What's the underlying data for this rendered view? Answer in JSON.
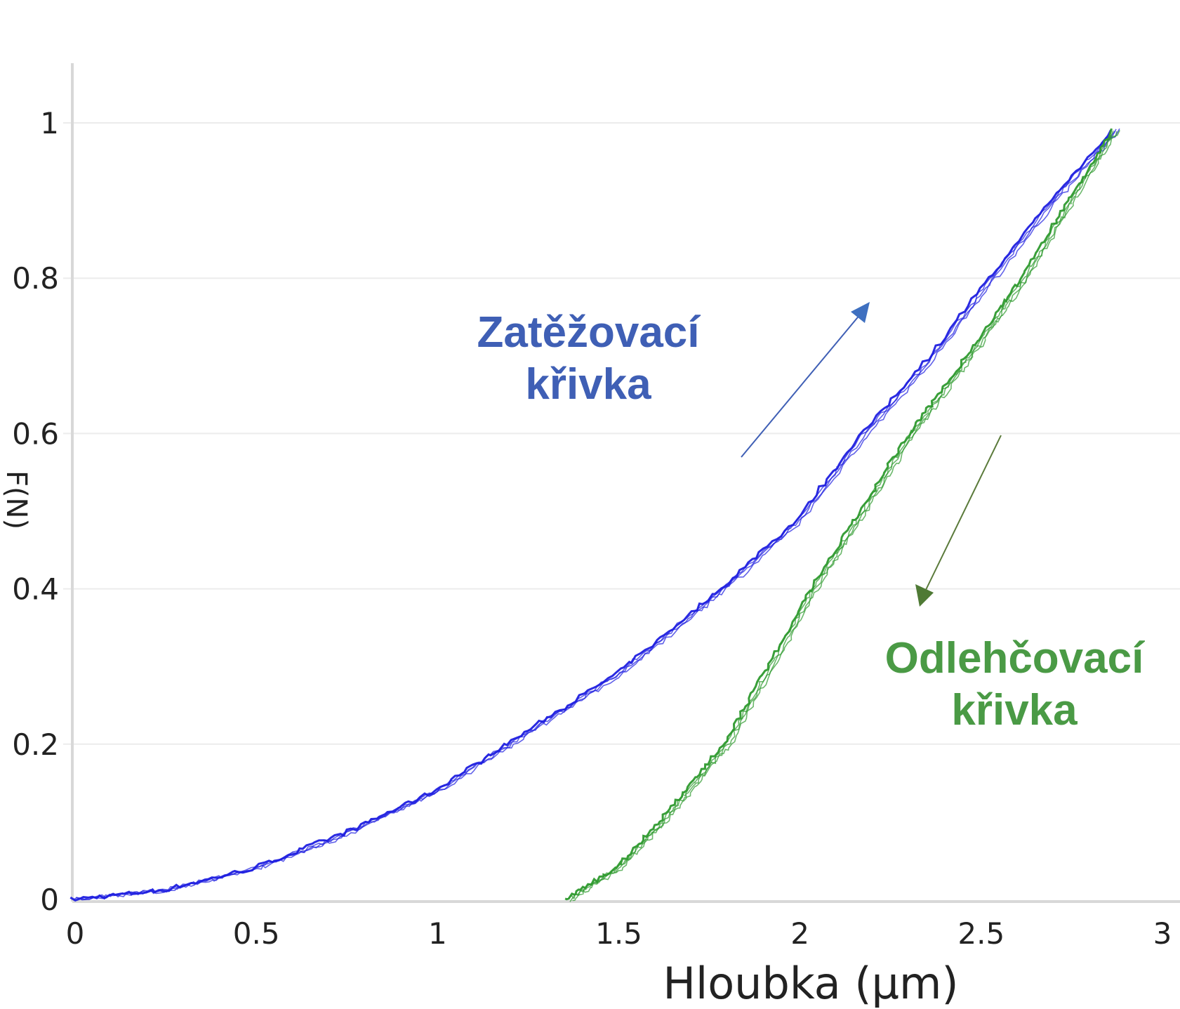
{
  "chart_data": {
    "type": "line",
    "xlabel": "Hloubka  (µm)",
    "ylabel": "F(N)",
    "xlim": [
      0,
      3
    ],
    "ylim": [
      0,
      1
    ],
    "x_ticks": [
      "0",
      "0.5",
      "1",
      "1.5",
      "2",
      "2.5",
      "3"
    ],
    "y_ticks": [
      "0",
      "0.2",
      "0.4",
      "0.6",
      "0.8",
      "1"
    ],
    "grid": "horizontal",
    "series": [
      {
        "name": "Zatěžovací křivka",
        "color": "#1f1fe0",
        "x": [
          0,
          0.25,
          0.5,
          0.75,
          1.0,
          1.2,
          1.5,
          1.79,
          2.0,
          2.18,
          2.35,
          2.53,
          2.7,
          2.87
        ],
        "y": [
          0,
          0.012,
          0.04,
          0.085,
          0.14,
          0.2,
          0.29,
          0.4,
          0.49,
          0.6,
          0.69,
          0.8,
          0.9,
          0.99
        ]
      },
      {
        "name": "Odlehčovací křivka",
        "color": "#2e9a2e",
        "x": [
          1.36,
          1.5,
          1.62,
          1.8,
          2.04,
          2.31,
          2.47,
          2.62,
          2.75,
          2.87
        ],
        "y": [
          0,
          0.04,
          0.1,
          0.2,
          0.4,
          0.6,
          0.7,
          0.8,
          0.9,
          0.99
        ]
      }
    ],
    "annotations": [
      {
        "text_line1": "Zatěžovací",
        "text_line2": "křivka",
        "color": "#3f5fb5",
        "arrow": "up-right"
      },
      {
        "text_line1": "Odlehčovací",
        "text_line2": "křivka",
        "color": "#4a9a45",
        "arrow": "down-left"
      }
    ]
  }
}
